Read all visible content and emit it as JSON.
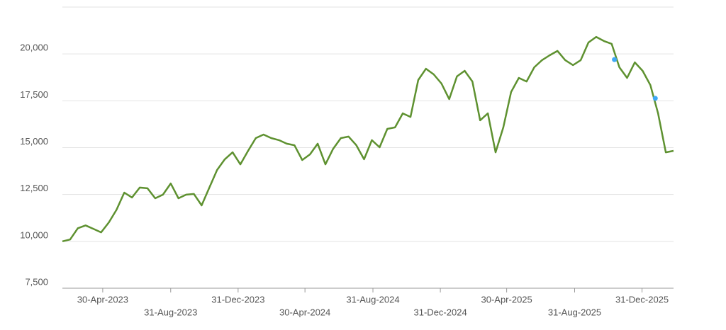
{
  "chart_data": {
    "type": "line",
    "xlim": [
      "2023-02-16",
      "2026-02-26"
    ],
    "xticks": [
      {
        "value": "2023-04-30",
        "label": "30-Apr-2023"
      },
      {
        "value": "2023-08-31",
        "label": "31-Aug-2023"
      },
      {
        "value": "2023-12-31",
        "label": "31-Dec-2023"
      },
      {
        "value": "2024-04-30",
        "label": "30-Apr-2024"
      },
      {
        "value": "2024-08-31",
        "label": "31-Aug-2024"
      },
      {
        "value": "2024-12-31",
        "label": "31-Dec-2024"
      },
      {
        "value": "2025-04-30",
        "label": "30-Apr-2025"
      },
      {
        "value": "2025-08-31",
        "label": "31-Aug-2025"
      },
      {
        "value": "2025-12-31",
        "label": "31-Dec-2025"
      }
    ],
    "ylim": [
      7500,
      22500
    ],
    "yticks": [
      {
        "value": 7500,
        "label": "7,500"
      },
      {
        "value": 10000,
        "label": "10,000"
      },
      {
        "value": 12500,
        "label": "12,500"
      },
      {
        "value": 15000,
        "label": "15,000"
      },
      {
        "value": 17500,
        "label": "17,500"
      },
      {
        "value": 20000,
        "label": "20,000"
      }
    ],
    "grid": true,
    "x": [
      "2023-02-16",
      "2023-03-02",
      "2023-03-16",
      "2023-03-30",
      "2023-04-13",
      "2023-04-27",
      "2023-05-11",
      "2023-05-25",
      "2023-06-08",
      "2023-06-22",
      "2023-07-06",
      "2023-07-20",
      "2023-08-03",
      "2023-08-17",
      "2023-08-31",
      "2023-09-14",
      "2023-09-28",
      "2023-10-12",
      "2023-10-26",
      "2023-11-09",
      "2023-11-23",
      "2023-12-07",
      "2023-12-21",
      "2024-01-04",
      "2024-01-18",
      "2024-02-01",
      "2024-02-15",
      "2024-02-29",
      "2024-03-14",
      "2024-03-28",
      "2024-04-11",
      "2024-04-25",
      "2024-05-09",
      "2024-05-23",
      "2024-06-06",
      "2024-06-20",
      "2024-07-04",
      "2024-07-18",
      "2024-08-01",
      "2024-08-15",
      "2024-08-29",
      "2024-09-12",
      "2024-09-26",
      "2024-10-10",
      "2024-10-24",
      "2024-11-07",
      "2024-11-21",
      "2024-12-05",
      "2024-12-19",
      "2025-01-02",
      "2025-01-16",
      "2025-01-30",
      "2025-02-13",
      "2025-02-27",
      "2025-03-13",
      "2025-03-27",
      "2025-04-10",
      "2025-04-24",
      "2025-05-08",
      "2025-05-22",
      "2025-06-05",
      "2025-06-19",
      "2025-07-03",
      "2025-07-17",
      "2025-07-31",
      "2025-08-14",
      "2025-08-28",
      "2025-09-11",
      "2025-09-25",
      "2025-10-09",
      "2025-10-23",
      "2025-11-06",
      "2025-11-20",
      "2025-12-04",
      "2025-12-18",
      "2026-01-01",
      "2026-01-15",
      "2026-01-29",
      "2026-02-12",
      "2026-02-26"
    ],
    "series": [
      {
        "color": "#5e9130",
        "values": [
          10000,
          10100,
          10700,
          10850,
          10670,
          10480,
          11010,
          11690,
          12600,
          12340,
          12870,
          12830,
          12300,
          12490,
          13090,
          12300,
          12490,
          12530,
          11920,
          12870,
          13810,
          14380,
          14750,
          14110,
          14830,
          15510,
          15700,
          15510,
          15400,
          15210,
          15130,
          14340,
          14640,
          15210,
          14110,
          14940,
          15510,
          15590,
          15130,
          14380,
          15400,
          15020,
          16000,
          16080,
          16830,
          16640,
          18610,
          19210,
          18910,
          18420,
          17590,
          18800,
          19100,
          18530,
          16460,
          16830,
          14750,
          16080,
          17970,
          18720,
          18530,
          19290,
          19670,
          19930,
          20160,
          19670,
          19400,
          19670,
          20610,
          20910,
          20690,
          20540,
          19290,
          18720,
          19550,
          19100,
          18340,
          16830,
          14750,
          14830
        ]
      }
    ],
    "markers": {
      "color": "#3fa9f5",
      "x": [
        "2025-11-11",
        "2026-01-24"
      ],
      "values": [
        19700,
        17630
      ]
    }
  }
}
